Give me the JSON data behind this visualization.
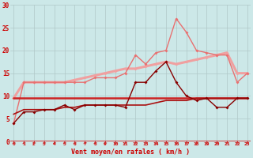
{
  "x": [
    0,
    1,
    2,
    3,
    4,
    5,
    6,
    7,
    8,
    9,
    10,
    11,
    12,
    13,
    14,
    15,
    16,
    17,
    18,
    19,
    20,
    21,
    22,
    23
  ],
  "line_pink_smooth": [
    9.5,
    13,
    13,
    13,
    13,
    13,
    13.5,
    14,
    14.5,
    15,
    15.5,
    16,
    16,
    16.5,
    17,
    17.5,
    17,
    17.5,
    18,
    18.5,
    19,
    19.5,
    15,
    15
  ],
  "line_pink_zigzag": [
    4,
    13,
    13,
    13,
    13,
    13,
    13,
    13,
    14,
    14,
    14,
    15,
    19,
    17,
    19.5,
    20,
    27,
    24,
    20,
    19.5,
    19,
    19,
    13,
    15
  ],
  "line_dark_smooth1": [
    9.5,
    9.5,
    9.5,
    9.5,
    9.5,
    9.5,
    9.5,
    9.5,
    9.5,
    9.5,
    9.5,
    9.5,
    9.5,
    9.5,
    9.5,
    9.5,
    9.5,
    9.5,
    9.5,
    9.5,
    9.5,
    9.5,
    9.5,
    9.5
  ],
  "line_dark_smooth2": [
    6,
    7,
    7,
    7,
    7,
    7.5,
    7.5,
    8,
    8,
    8,
    8,
    8,
    8,
    8,
    8.5,
    9,
    9,
    9,
    9.5,
    9.5,
    9.5,
    9.5,
    9.5,
    9.5
  ],
  "line_dark_zigzag": [
    4,
    6.5,
    6.5,
    7,
    7,
    8,
    7,
    8,
    8,
    8,
    8,
    7.5,
    13,
    13,
    15.5,
    17.5,
    13,
    10,
    9,
    9.5,
    7.5,
    7.5,
    9.5,
    9.5
  ],
  "bg_color": "#cce8e8",
  "grid_color": "#b0c8c8",
  "color_light_pink": "#f0a0a0",
  "color_medium_pink": "#e87070",
  "color_dark_red1": "#cc2222",
  "color_dark_red2": "#aa1111",
  "color_dark_zigzag": "#880000",
  "color_arrow": "#cc2222",
  "xlabel": "Vent moyen/en rafales ( km/h )",
  "xlabel_color": "#cc0000",
  "tick_color": "#cc0000",
  "ylim": [
    0,
    30
  ],
  "xlim_min": -0.3,
  "xlim_max": 23.3,
  "yticks": [
    0,
    5,
    10,
    15,
    20,
    25,
    30
  ]
}
